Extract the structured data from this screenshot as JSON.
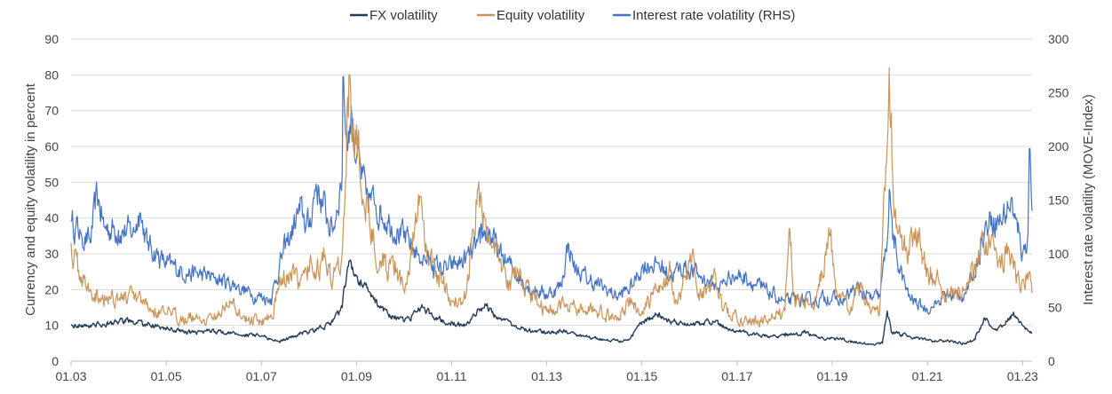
{
  "chart_data": {
    "type": "line",
    "title": "",
    "ylabel_left": "Currency and equity volatility in percent",
    "ylabel_right": "Interest rate volatility (MOVE-Index)",
    "ylim_left": [
      0,
      90
    ],
    "ylim_right": [
      0,
      300
    ],
    "yticks_left": [
      "0",
      "10",
      "20",
      "30",
      "40",
      "50",
      "60",
      "70",
      "80",
      "90"
    ],
    "yticks_right": [
      "0",
      "50",
      "100",
      "150",
      "200",
      "250",
      "300"
    ],
    "xlim": [
      2003.0,
      2023.2
    ],
    "xticks": [
      {
        "x": 2003,
        "label": "01.03"
      },
      {
        "x": 2005,
        "label": "01.05"
      },
      {
        "x": 2007,
        "label": "01.07"
      },
      {
        "x": 2009,
        "label": "01.09"
      },
      {
        "x": 2011,
        "label": "01.11"
      },
      {
        "x": 2013,
        "label": "01.13"
      },
      {
        "x": 2015,
        "label": "01.15"
      },
      {
        "x": 2017,
        "label": "01.17"
      },
      {
        "x": 2019,
        "label": "01.19"
      },
      {
        "x": 2021,
        "label": "01.21"
      },
      {
        "x": 2023,
        "label": "01.23"
      }
    ],
    "grid": "horizontal",
    "legend_position": "top",
    "series": [
      {
        "name": "Interest rate volatility (RHS)",
        "axis": "right",
        "color": "#4472c4",
        "points": [
          [
            2003.0,
            130
          ],
          [
            2003.2,
            120
          ],
          [
            2003.4,
            110
          ],
          [
            2003.55,
            155
          ],
          [
            2003.7,
            125
          ],
          [
            2004.0,
            122
          ],
          [
            2004.3,
            120
          ],
          [
            2004.45,
            138
          ],
          [
            2004.6,
            110
          ],
          [
            2005.0,
            90
          ],
          [
            2005.5,
            82
          ],
          [
            2006.0,
            78
          ],
          [
            2006.5,
            70
          ],
          [
            2006.8,
            62
          ],
          [
            2007.2,
            58
          ],
          [
            2007.45,
            100
          ],
          [
            2007.6,
            115
          ],
          [
            2007.8,
            140
          ],
          [
            2008.0,
            125
          ],
          [
            2008.15,
            165
          ],
          [
            2008.3,
            145
          ],
          [
            2008.5,
            120
          ],
          [
            2008.7,
            175
          ],
          [
            2008.72,
            265
          ],
          [
            2008.8,
            200
          ],
          [
            2008.9,
            230
          ],
          [
            2009.0,
            190
          ],
          [
            2009.2,
            155
          ],
          [
            2009.4,
            145
          ],
          [
            2009.7,
            130
          ],
          [
            2010.0,
            115
          ],
          [
            2010.3,
            100
          ],
          [
            2010.6,
            90
          ],
          [
            2010.9,
            85
          ],
          [
            2011.3,
            95
          ],
          [
            2011.6,
            110
          ],
          [
            2011.75,
            125
          ],
          [
            2012.0,
            100
          ],
          [
            2012.3,
            85
          ],
          [
            2012.6,
            70
          ],
          [
            2013.0,
            62
          ],
          [
            2013.3,
            70
          ],
          [
            2013.45,
            110
          ],
          [
            2013.6,
            85
          ],
          [
            2013.9,
            75
          ],
          [
            2014.2,
            68
          ],
          [
            2014.5,
            60
          ],
          [
            2014.8,
            70
          ],
          [
            2015.0,
            88
          ],
          [
            2015.3,
            92
          ],
          [
            2015.6,
            80
          ],
          [
            2015.9,
            88
          ],
          [
            2016.2,
            80
          ],
          [
            2016.6,
            68
          ],
          [
            2016.9,
            80
          ],
          [
            2017.2,
            78
          ],
          [
            2017.5,
            68
          ],
          [
            2017.8,
            60
          ],
          [
            2018.0,
            55
          ],
          [
            2018.3,
            58
          ],
          [
            2018.6,
            55
          ],
          [
            2018.9,
            60
          ],
          [
            2019.2,
            55
          ],
          [
            2019.5,
            68
          ],
          [
            2019.8,
            58
          ],
          [
            2020.0,
            60
          ],
          [
            2020.15,
            110
          ],
          [
            2020.2,
            160
          ],
          [
            2020.3,
            105
          ],
          [
            2020.6,
            60
          ],
          [
            2020.9,
            50
          ],
          [
            2021.1,
            50
          ],
          [
            2021.4,
            62
          ],
          [
            2021.7,
            60
          ],
          [
            2021.95,
            75
          ],
          [
            2022.15,
            115
          ],
          [
            2022.35,
            135
          ],
          [
            2022.55,
            130
          ],
          [
            2022.75,
            150
          ],
          [
            2022.9,
            120
          ],
          [
            2023.0,
            100
          ],
          [
            2023.1,
            110
          ],
          [
            2023.15,
            198
          ],
          [
            2023.2,
            140
          ]
        ]
      },
      {
        "name": "Equity volatility",
        "axis": "left",
        "color": "#c9955a",
        "points": [
          [
            2003.0,
            33
          ],
          [
            2003.15,
            25
          ],
          [
            2003.4,
            20
          ],
          [
            2003.8,
            18
          ],
          [
            2004.2,
            18
          ],
          [
            2004.5,
            16
          ],
          [
            2005.0,
            13
          ],
          [
            2005.5,
            12
          ],
          [
            2006.0,
            12
          ],
          [
            2006.4,
            17
          ],
          [
            2006.6,
            12
          ],
          [
            2007.0,
            11
          ],
          [
            2007.2,
            13
          ],
          [
            2007.4,
            22
          ],
          [
            2007.6,
            25
          ],
          [
            2007.8,
            21
          ],
          [
            2008.0,
            25
          ],
          [
            2008.3,
            28
          ],
          [
            2008.5,
            22
          ],
          [
            2008.7,
            30
          ],
          [
            2008.8,
            70
          ],
          [
            2008.85,
            80
          ],
          [
            2008.95,
            62
          ],
          [
            2009.2,
            45
          ],
          [
            2009.5,
            28
          ],
          [
            2009.8,
            24
          ],
          [
            2010.0,
            20
          ],
          [
            2010.35,
            46
          ],
          [
            2010.5,
            28
          ],
          [
            2010.8,
            22
          ],
          [
            2011.0,
            17
          ],
          [
            2011.3,
            18
          ],
          [
            2011.55,
            48
          ],
          [
            2011.7,
            40
          ],
          [
            2011.9,
            30
          ],
          [
            2012.2,
            22
          ],
          [
            2012.45,
            25
          ],
          [
            2012.7,
            17
          ],
          [
            2013.0,
            14
          ],
          [
            2013.4,
            16
          ],
          [
            2013.6,
            15
          ],
          [
            2014.0,
            14
          ],
          [
            2014.4,
            12
          ],
          [
            2014.8,
            16
          ],
          [
            2015.0,
            14
          ],
          [
            2015.6,
            25
          ],
          [
            2015.7,
            16
          ],
          [
            2016.1,
            28
          ],
          [
            2016.2,
            17
          ],
          [
            2016.5,
            24
          ],
          [
            2016.7,
            14
          ],
          [
            2017.0,
            12
          ],
          [
            2017.5,
            11
          ],
          [
            2018.0,
            14
          ],
          [
            2018.1,
            37
          ],
          [
            2018.2,
            18
          ],
          [
            2018.6,
            15
          ],
          [
            2018.95,
            35
          ],
          [
            2019.1,
            18
          ],
          [
            2019.4,
            14
          ],
          [
            2019.6,
            22
          ],
          [
            2019.8,
            15
          ],
          [
            2020.0,
            14
          ],
          [
            2020.15,
            60
          ],
          [
            2020.2,
            82
          ],
          [
            2020.3,
            40
          ],
          [
            2020.5,
            32
          ],
          [
            2020.8,
            33
          ],
          [
            2021.0,
            26
          ],
          [
            2021.3,
            20
          ],
          [
            2021.6,
            19
          ],
          [
            2021.9,
            22
          ],
          [
            2022.1,
            30
          ],
          [
            2022.3,
            33
          ],
          [
            2022.5,
            28
          ],
          [
            2022.7,
            32
          ],
          [
            2022.9,
            24
          ],
          [
            2023.05,
            20
          ],
          [
            2023.15,
            25
          ],
          [
            2023.2,
            19
          ]
        ]
      },
      {
        "name": "FX volatility",
        "axis": "left",
        "color": "#243c59",
        "points": [
          [
            2003.0,
            10
          ],
          [
            2003.4,
            10
          ],
          [
            2003.8,
            10.5
          ],
          [
            2004.2,
            11.5
          ],
          [
            2004.6,
            10
          ],
          [
            2005.0,
            9
          ],
          [
            2005.5,
            8
          ],
          [
            2006.0,
            8.5
          ],
          [
            2006.5,
            7.5
          ],
          [
            2007.0,
            7
          ],
          [
            2007.4,
            5.5
          ],
          [
            2007.8,
            7.5
          ],
          [
            2008.2,
            9
          ],
          [
            2008.5,
            11
          ],
          [
            2008.7,
            15
          ],
          [
            2008.8,
            25
          ],
          [
            2008.85,
            28
          ],
          [
            2009.0,
            24
          ],
          [
            2009.3,
            18
          ],
          [
            2009.7,
            13
          ],
          [
            2010.0,
            11
          ],
          [
            2010.4,
            15
          ],
          [
            2010.7,
            12
          ],
          [
            2011.0,
            11
          ],
          [
            2011.3,
            10
          ],
          [
            2011.7,
            16
          ],
          [
            2011.9,
            13
          ],
          [
            2012.3,
            10
          ],
          [
            2012.7,
            8.5
          ],
          [
            2013.0,
            8
          ],
          [
            2013.4,
            8.5
          ],
          [
            2013.8,
            7
          ],
          [
            2014.2,
            6
          ],
          [
            2014.6,
            5.5
          ],
          [
            2014.8,
            7
          ],
          [
            2015.0,
            11
          ],
          [
            2015.3,
            13
          ],
          [
            2015.7,
            11
          ],
          [
            2016.0,
            10
          ],
          [
            2016.5,
            11
          ],
          [
            2016.8,
            9
          ],
          [
            2017.2,
            8
          ],
          [
            2017.6,
            7
          ],
          [
            2018.0,
            7
          ],
          [
            2018.4,
            8
          ],
          [
            2018.8,
            6.5
          ],
          [
            2019.2,
            6
          ],
          [
            2019.6,
            5
          ],
          [
            2019.9,
            4.5
          ],
          [
            2020.05,
            5
          ],
          [
            2020.15,
            14
          ],
          [
            2020.25,
            8
          ],
          [
            2020.6,
            7
          ],
          [
            2021.0,
            6
          ],
          [
            2021.4,
            5.5
          ],
          [
            2021.8,
            5
          ],
          [
            2022.0,
            6
          ],
          [
            2022.2,
            12
          ],
          [
            2022.4,
            9
          ],
          [
            2022.6,
            10
          ],
          [
            2022.8,
            13
          ],
          [
            2023.0,
            10
          ],
          [
            2023.2,
            8
          ]
        ]
      }
    ]
  }
}
